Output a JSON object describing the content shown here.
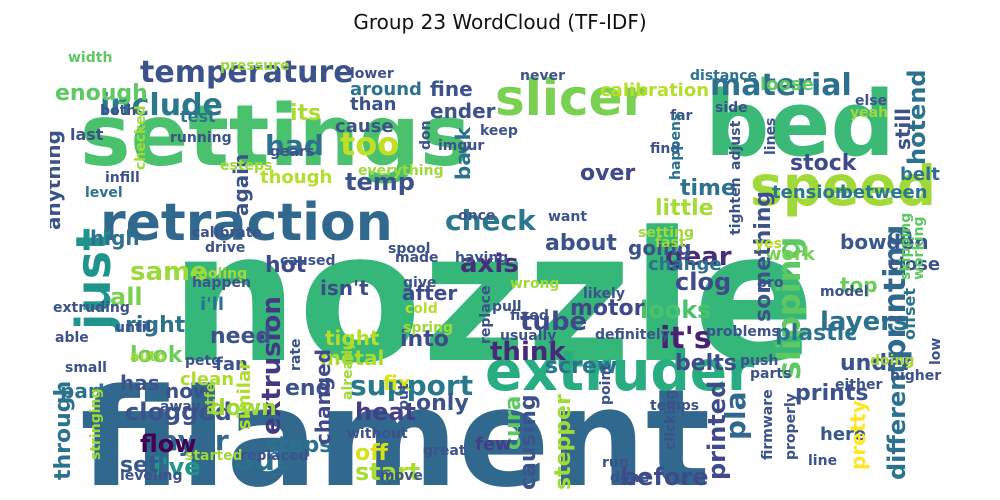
{
  "title": "Group 23 WordCloud (TF-IDF)",
  "palette": {
    "dark_purple": "#440154",
    "indigo": "#46327e",
    "blue": "#365c8d",
    "teal_blue": "#277f8e",
    "teal": "#1fa187",
    "green": "#4ac16d",
    "lime": "#a0da39",
    "yellow": "#fde725"
  },
  "words": [
    {
      "text": "nozzle",
      "color": "#35b779"
    },
    {
      "text": "filament",
      "color": "#31688e"
    },
    {
      "text": "settings",
      "color": "#4ac16d"
    },
    {
      "text": "bed",
      "color": "#3aba76"
    },
    {
      "text": "extruder",
      "color": "#27ad81"
    },
    {
      "text": "speed",
      "color": "#a0da39"
    },
    {
      "text": "slicer",
      "color": "#7ad151"
    },
    {
      "text": "retraction",
      "color": "#31688e"
    },
    {
      "text": "just",
      "color": "#1f948c"
    },
    {
      "text": "temperature",
      "color": "#3b528b"
    },
    {
      "text": "material",
      "color": "#2c728e"
    },
    {
      "text": "include",
      "color": "#2a788e"
    },
    {
      "text": "too",
      "color": "#c2df23"
    },
    {
      "text": "had",
      "color": "#2c728e"
    },
    {
      "text": "its",
      "color": "#addc30"
    },
    {
      "text": "temp",
      "color": "#3b528b"
    },
    {
      "text": "check",
      "color": "#2a788e"
    },
    {
      "text": "axis",
      "color": "#472d7b"
    },
    {
      "text": "same",
      "color": "#9bd93c"
    },
    {
      "text": "all",
      "color": "#7ad151"
    },
    {
      "text": "right",
      "color": "#2c728e"
    },
    {
      "text": "look",
      "color": "#6ccd5a"
    },
    {
      "text": "has",
      "color": "#3b528b"
    },
    {
      "text": "extrusion",
      "color": "#443983"
    },
    {
      "text": "out",
      "color": "#2d708e"
    },
    {
      "text": "layer",
      "color": "#31688e"
    },
    {
      "text": "i've",
      "color": "#1f978b"
    },
    {
      "text": "set",
      "color": "#38588c"
    },
    {
      "text": "support",
      "color": "#2a788e"
    },
    {
      "text": "heat",
      "color": "#433e85"
    },
    {
      "text": "fix",
      "color": "#d8e219"
    },
    {
      "text": "off",
      "color": "#d8e219"
    },
    {
      "text": "start",
      "color": "#a8db34"
    },
    {
      "text": "bit",
      "color": "#2c728e"
    },
    {
      "text": "tube",
      "color": "#3e4a89"
    },
    {
      "text": "looks",
      "color": "#4ac16d"
    },
    {
      "text": "it's",
      "color": "#482173"
    },
    {
      "text": "layers",
      "color": "#2c728e"
    },
    {
      "text": "slipping",
      "color": "#5ec962"
    },
    {
      "text": "printing",
      "color": "#31688e"
    },
    {
      "text": "hotend",
      "color": "#2c728e"
    },
    {
      "text": "stock",
      "color": "#3e4a89"
    },
    {
      "text": "gear",
      "color": "#472d7b"
    },
    {
      "text": "clog",
      "color": "#3e4a89"
    },
    {
      "text": "motor",
      "color": "#3e4a89"
    },
    {
      "text": "think",
      "color": "#482878"
    },
    {
      "text": "about",
      "color": "#3b528b"
    },
    {
      "text": "little",
      "color": "#a5db36"
    },
    {
      "text": "time",
      "color": "#2c728e"
    },
    {
      "text": "over",
      "color": "#3e4a89"
    },
    {
      "text": "ender",
      "color": "#3b528b"
    },
    {
      "text": "back",
      "color": "#2c728e"
    },
    {
      "text": "fine",
      "color": "#3b528b"
    },
    {
      "text": "than",
      "color": "#3b528b"
    },
    {
      "text": "cause",
      "color": "#3b528b"
    },
    {
      "text": "enough",
      "color": "#5ec962"
    },
    {
      "text": "test",
      "color": "#2c728e"
    },
    {
      "text": "calibration",
      "color": "#b5de2b"
    },
    {
      "text": "loose",
      "color": "#5ec962"
    },
    {
      "text": "still",
      "color": "#3b528b"
    },
    {
      "text": "belt",
      "color": "#2c728e"
    },
    {
      "text": "tension",
      "color": "#2a788e"
    },
    {
      "text": "between",
      "color": "#2a788e"
    },
    {
      "text": "bowden",
      "color": "#38588c"
    },
    {
      "text": "close",
      "color": "#3b528b"
    },
    {
      "text": "work",
      "color": "#75d054"
    },
    {
      "text": "top",
      "color": "#6ccd5a"
    },
    {
      "text": "plastic",
      "color": "#2c728e"
    },
    {
      "text": "under",
      "color": "#3b528b"
    },
    {
      "text": "prints",
      "color": "#3b528b"
    },
    {
      "text": "different",
      "color": "#2c728e"
    },
    {
      "text": "here",
      "color": "#38588c"
    },
    {
      "text": "pretty",
      "color": "#fde725"
    },
    {
      "text": "arm",
      "color": "#2c728e"
    },
    {
      "text": "pla",
      "color": "#31688e"
    },
    {
      "text": "printed",
      "color": "#3e4a89"
    },
    {
      "text": "before",
      "color": "#3e4a89"
    },
    {
      "text": "cura",
      "color": "#5ec962"
    },
    {
      "text": "causing",
      "color": "#3b528b"
    },
    {
      "text": "stepper",
      "color": "#a0da39"
    },
    {
      "text": "few",
      "color": "#433e85"
    },
    {
      "text": "only",
      "color": "#3b528b"
    },
    {
      "text": "screw",
      "color": "#2c728e"
    },
    {
      "text": "belts",
      "color": "#3e4a89"
    },
    {
      "text": "into",
      "color": "#3e4a89"
    },
    {
      "text": "after",
      "color": "#3e4a89"
    },
    {
      "text": "metal",
      "color": "#addc30"
    },
    {
      "text": "tight",
      "color": "#b5de2b"
    },
    {
      "text": "isn't",
      "color": "#3e4a89"
    },
    {
      "text": "hot",
      "color": "#3e4a89"
    },
    {
      "text": "i'll",
      "color": "#2c728e"
    },
    {
      "text": "need",
      "color": "#3b528b"
    },
    {
      "text": "fan",
      "color": "#3b528b"
    },
    {
      "text": "clean",
      "color": "#addc30"
    },
    {
      "text": "now",
      "color": "#3b528b"
    },
    {
      "text": "clogged",
      "color": "#3b528b"
    },
    {
      "text": "down",
      "color": "#a0da39"
    },
    {
      "text": "flow",
      "color": "#440154"
    },
    {
      "text": "part",
      "color": "#2c728e"
    },
    {
      "text": "end",
      "color": "#3b528b"
    },
    {
      "text": "steps",
      "color": "#2c728e"
    },
    {
      "text": "changed",
      "color": "#3e4a89"
    },
    {
      "text": "through",
      "color": "#2c728e"
    },
    {
      "text": "similar",
      "color": "#addc30"
    },
    {
      "text": "anything",
      "color": "#3b528b"
    },
    {
      "text": "high",
      "color": "#2c728e"
    },
    {
      "text": "again",
      "color": "#3b528b"
    },
    {
      "text": "though",
      "color": "#b5de2b"
    },
    {
      "text": "going",
      "color": "#3b528b"
    },
    {
      "text": "change",
      "color": "#2c728e"
    },
    {
      "text": "something",
      "color": "#3b528b"
    },
    {
      "text": "around",
      "color": "#2c728e"
    },
    {
      "text": "width",
      "color": "#5ec962"
    },
    {
      "text": "pressure",
      "color": "#9bd93c"
    },
    {
      "text": "lower",
      "color": "#3b528b"
    },
    {
      "text": "never",
      "color": "#3b528b"
    },
    {
      "text": "distance",
      "color": "#2c728e"
    },
    {
      "text": "far",
      "color": "#3b528b"
    },
    {
      "text": "adjust",
      "color": "#3b528b"
    },
    {
      "text": "lines",
      "color": "#3b528b"
    },
    {
      "text": "side",
      "color": "#3b528b"
    },
    {
      "text": "find",
      "color": "#3b528b"
    },
    {
      "text": "happens",
      "color": "#2c728e"
    },
    {
      "text": "else",
      "color": "#3b528b"
    },
    {
      "text": "yeah",
      "color": "#a0da39"
    },
    {
      "text": "both",
      "color": "#3b528b"
    },
    {
      "text": "last",
      "color": "#3b528b"
    },
    {
      "text": "checked",
      "color": "#a0da39"
    },
    {
      "text": "running",
      "color": "#3b528b"
    },
    {
      "text": "gears",
      "color": "#3b528b"
    },
    {
      "text": "esteps",
      "color": "#a0da39"
    },
    {
      "text": "everything",
      "color": "#a0da39"
    },
    {
      "text": "infill",
      "color": "#3b528b"
    },
    {
      "text": "level",
      "color": "#2c728e"
    },
    {
      "text": "don",
      "color": "#3b528b"
    },
    {
      "text": "imgur",
      "color": "#3b528b"
    },
    {
      "text": "keep",
      "color": "#3b528b"
    },
    {
      "text": "tighten",
      "color": "#3b528b"
    },
    {
      "text": "skipping",
      "color": "#5ec962"
    },
    {
      "text": "working",
      "color": "#5ec962"
    },
    {
      "text": "caused",
      "color": "#3b528b"
    },
    {
      "text": "spool",
      "color": "#3b528b"
    },
    {
      "text": "once",
      "color": "#3b528b"
    },
    {
      "text": "want",
      "color": "#3b528b"
    },
    {
      "text": "setting",
      "color": "#a0da39"
    },
    {
      "text": "made",
      "color": "#3b528b"
    },
    {
      "text": "having",
      "color": "#3b528b"
    },
    {
      "text": "calibrate",
      "color": "#3b528b"
    },
    {
      "text": "drive",
      "color": "#3b528b"
    },
    {
      "text": "give",
      "color": "#3b528b"
    },
    {
      "text": "wrong",
      "color": "#a0da39"
    },
    {
      "text": "fast",
      "color": "#a0da39"
    },
    {
      "text": "yes",
      "color": "#b5de2b"
    },
    {
      "text": "cooling",
      "color": "#a0da39"
    },
    {
      "text": "happen",
      "color": "#3b528b"
    },
    {
      "text": "pull",
      "color": "#3b528b"
    },
    {
      "text": "likely",
      "color": "#3b528b"
    },
    {
      "text": "pro",
      "color": "#3b528b"
    },
    {
      "text": "offset",
      "color": "#2c728e"
    },
    {
      "text": "model",
      "color": "#3b528b"
    },
    {
      "text": "cold",
      "color": "#b5de2b"
    },
    {
      "text": "extruding",
      "color": "#3b528b"
    },
    {
      "text": "fixed",
      "color": "#3b528b"
    },
    {
      "text": "spring",
      "color": "#a0da39"
    },
    {
      "text": "replace",
      "color": "#3b528b"
    },
    {
      "text": "usually",
      "color": "#3b528b"
    },
    {
      "text": "definitely",
      "color": "#3b528b"
    },
    {
      "text": "problems",
      "color": "#3b528b"
    },
    {
      "text": "able",
      "color": "#3b528b"
    },
    {
      "text": "until",
      "color": "#3b528b"
    },
    {
      "text": "auto",
      "color": "#a0da39"
    },
    {
      "text": "small",
      "color": "#3b528b"
    },
    {
      "text": "petg",
      "color": "#3b528b"
    },
    {
      "text": "rate",
      "color": "#3b528b"
    },
    {
      "text": "already",
      "color": "#a0da39"
    },
    {
      "text": "put",
      "color": "#3b528b"
    },
    {
      "text": "push",
      "color": "#3b528b"
    },
    {
      "text": "parts",
      "color": "#3b528b"
    },
    {
      "text": "doing",
      "color": "#a0da39"
    },
    {
      "text": "higher",
      "color": "#3b528b"
    },
    {
      "text": "either",
      "color": "#3b528b"
    },
    {
      "text": "low",
      "color": "#3b528b"
    },
    {
      "text": "stringing",
      "color": "#a0da39"
    },
    {
      "text": "away",
      "color": "#3b528b"
    },
    {
      "text": "ptfe",
      "color": "#a0da39"
    },
    {
      "text": "started",
      "color": "#a0da39"
    },
    {
      "text": "replaced",
      "color": "#3b528b"
    },
    {
      "text": "without",
      "color": "#3b528b"
    },
    {
      "text": "great",
      "color": "#3b528b"
    },
    {
      "text": "point",
      "color": "#3b528b"
    },
    {
      "text": "clicking",
      "color": "#3b528b"
    },
    {
      "text": "run",
      "color": "#3b528b"
    },
    {
      "text": "done",
      "color": "#3b528b"
    },
    {
      "text": "firmware",
      "color": "#3b528b"
    },
    {
      "text": "properly",
      "color": "#3b528b"
    },
    {
      "text": "temps",
      "color": "#3b528b"
    },
    {
      "text": "line",
      "color": "#3b528b"
    },
    {
      "text": "leveling",
      "color": "#3b528b"
    },
    {
      "text": "move",
      "color": "#3b528b"
    }
  ]
}
